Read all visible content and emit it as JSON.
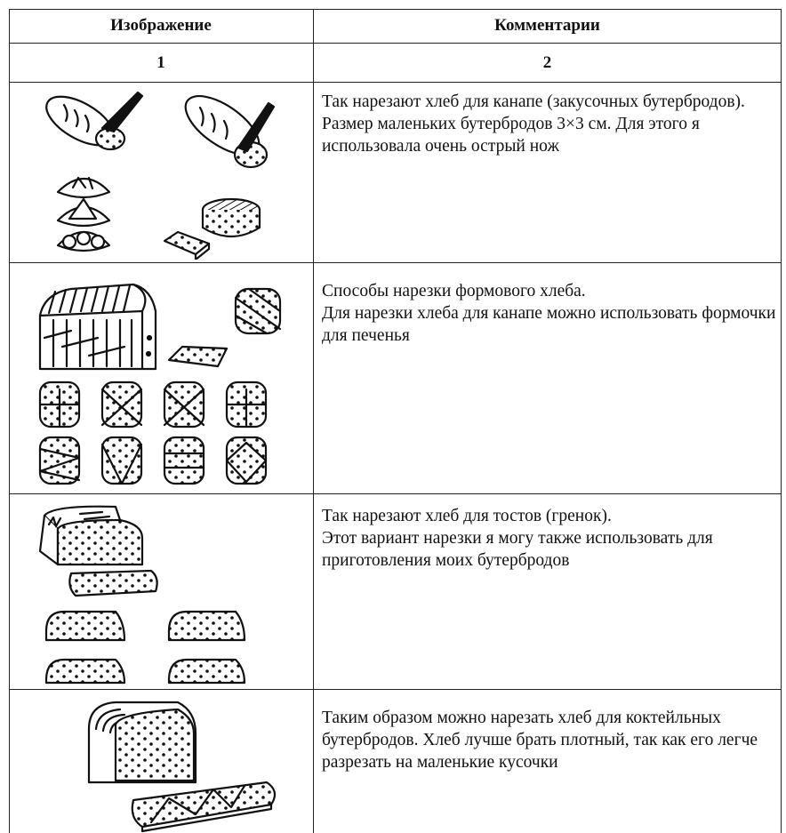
{
  "table": {
    "header": [
      "Изображение",
      "Комментарии"
    ],
    "numbers": [
      "1",
      "2"
    ],
    "rows": [
      {
        "comment": [
          "Так нарезают хлеб для канапе (закусочных бутербродов).",
          "Размер маленьких бутербродов 3×3 см. Для этого я использовала очень острый нож"
        ]
      },
      {
        "comment": [
          "Способы нарезки формового хлеба.",
          "Для нарезки хлеба для канапе можно использовать формочки для печенья"
        ]
      },
      {
        "comment": [
          "Так нарезают хлеб для тостов (гренок).",
          "Этот вариант нарезки я могу также использовать для приготовления моих бутербродов"
        ]
      },
      {
        "comment": [
          "Таким образом можно нарезать хлеб для коктейльных бутербродов. Хлеб лучше брать плотный, так как его легче разрезать на маленькие кусочки"
        ]
      }
    ]
  }
}
